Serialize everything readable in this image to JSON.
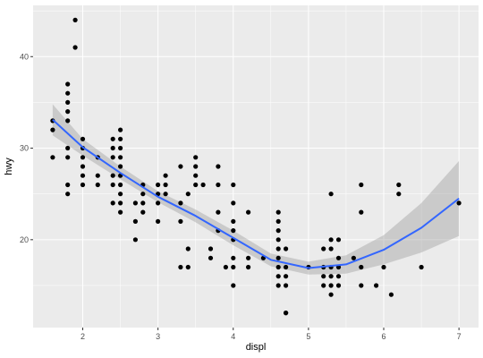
{
  "colors": {
    "panel_bg": "#ebebeb",
    "grid_major": "#ffffff",
    "point": "#000000",
    "smooth_line": "#3366ff",
    "ribbon": "#999999",
    "tick_text": "#4d4d4d"
  },
  "chart_data": {
    "type": "scatter",
    "title": "",
    "xlabel": "displ",
    "ylabel": "hwy",
    "xlim": [
      1.34,
      7.26
    ],
    "ylim": [
      10.4,
      45.6
    ],
    "grid": true,
    "x_ticks": [
      2,
      3,
      4,
      5,
      6,
      7
    ],
    "y_ticks": [
      20,
      30,
      40
    ],
    "series": [
      {
        "type": "points",
        "points": [
          [
            1.6,
            33
          ],
          [
            1.6,
            32
          ],
          [
            1.6,
            29
          ],
          [
            1.8,
            37
          ],
          [
            1.8,
            36
          ],
          [
            1.8,
            35
          ],
          [
            1.8,
            34
          ],
          [
            1.8,
            33
          ],
          [
            1.8,
            30
          ],
          [
            1.8,
            29
          ],
          [
            1.8,
            26
          ],
          [
            1.8,
            25
          ],
          [
            1.9,
            44
          ],
          [
            1.9,
            41
          ],
          [
            2.0,
            31
          ],
          [
            2.0,
            30
          ],
          [
            2.0,
            29
          ],
          [
            2.0,
            28
          ],
          [
            2.0,
            27
          ],
          [
            2.0,
            26
          ],
          [
            2.2,
            27
          ],
          [
            2.2,
            26
          ],
          [
            2.2,
            29
          ],
          [
            2.4,
            31
          ],
          [
            2.4,
            30
          ],
          [
            2.4,
            29
          ],
          [
            2.4,
            27
          ],
          [
            2.4,
            26
          ],
          [
            2.4,
            24
          ],
          [
            2.5,
            32
          ],
          [
            2.5,
            31
          ],
          [
            2.5,
            30
          ],
          [
            2.5,
            29
          ],
          [
            2.5,
            28
          ],
          [
            2.5,
            27
          ],
          [
            2.5,
            26
          ],
          [
            2.5,
            25
          ],
          [
            2.5,
            24
          ],
          [
            2.5,
            23
          ],
          [
            2.7,
            24
          ],
          [
            2.7,
            22
          ],
          [
            2.7,
            20
          ],
          [
            2.8,
            26
          ],
          [
            2.8,
            25
          ],
          [
            2.8,
            24
          ],
          [
            2.8,
            23
          ],
          [
            3.0,
            26
          ],
          [
            3.0,
            25
          ],
          [
            3.0,
            24
          ],
          [
            3.0,
            22
          ],
          [
            3.1,
            27
          ],
          [
            3.1,
            26
          ],
          [
            3.1,
            25
          ],
          [
            3.3,
            28
          ],
          [
            3.3,
            24
          ],
          [
            3.3,
            22
          ],
          [
            3.3,
            17
          ],
          [
            3.4,
            25
          ],
          [
            3.4,
            19
          ],
          [
            3.4,
            17
          ],
          [
            3.5,
            29
          ],
          [
            3.5,
            28
          ],
          [
            3.5,
            27
          ],
          [
            3.5,
            26
          ],
          [
            3.6,
            26
          ],
          [
            3.7,
            19
          ],
          [
            3.7,
            18
          ],
          [
            3.8,
            28
          ],
          [
            3.8,
            26
          ],
          [
            3.8,
            23
          ],
          [
            3.8,
            21
          ],
          [
            3.9,
            17
          ],
          [
            4.0,
            26
          ],
          [
            4.0,
            24
          ],
          [
            4.0,
            22
          ],
          [
            4.0,
            21
          ],
          [
            4.0,
            20
          ],
          [
            4.0,
            18
          ],
          [
            4.0,
            17
          ],
          [
            4.0,
            15
          ],
          [
            4.2,
            23
          ],
          [
            4.2,
            18
          ],
          [
            4.2,
            17
          ],
          [
            4.4,
            18
          ],
          [
            4.6,
            23
          ],
          [
            4.6,
            22
          ],
          [
            4.6,
            21
          ],
          [
            4.6,
            20
          ],
          [
            4.6,
            19
          ],
          [
            4.6,
            18
          ],
          [
            4.6,
            17
          ],
          [
            4.6,
            16
          ],
          [
            4.6,
            15
          ],
          [
            4.7,
            19
          ],
          [
            4.7,
            17
          ],
          [
            4.7,
            16
          ],
          [
            4.7,
            15
          ],
          [
            4.7,
            12
          ],
          [
            4.7,
            12
          ],
          [
            5.0,
            17
          ],
          [
            5.2,
            19
          ],
          [
            5.2,
            17
          ],
          [
            5.2,
            16
          ],
          [
            5.2,
            15
          ],
          [
            5.3,
            25
          ],
          [
            5.3,
            20
          ],
          [
            5.3,
            19
          ],
          [
            5.3,
            17
          ],
          [
            5.3,
            16
          ],
          [
            5.3,
            15
          ],
          [
            5.3,
            14
          ],
          [
            5.4,
            20
          ],
          [
            5.4,
            18
          ],
          [
            5.4,
            17
          ],
          [
            5.4,
            16
          ],
          [
            5.4,
            15
          ],
          [
            5.6,
            18
          ],
          [
            5.7,
            26
          ],
          [
            5.7,
            23
          ],
          [
            5.7,
            17
          ],
          [
            5.7,
            15
          ],
          [
            5.9,
            15
          ],
          [
            6.0,
            17
          ],
          [
            6.1,
            14
          ],
          [
            6.2,
            26
          ],
          [
            6.2,
            25
          ],
          [
            6.5,
            17
          ],
          [
            7.0,
            24
          ]
        ]
      },
      {
        "type": "smooth",
        "name": "",
        "fit": [
          [
            1.6,
            33.1
          ],
          [
            2.0,
            30.1
          ],
          [
            2.5,
            27.3
          ],
          [
            3.0,
            24.7
          ],
          [
            3.5,
            22.6
          ],
          [
            4.0,
            20.2
          ],
          [
            4.5,
            17.8
          ],
          [
            5.0,
            16.9
          ],
          [
            5.5,
            17.3
          ],
          [
            6.0,
            18.9
          ],
          [
            6.5,
            21.3
          ],
          [
            7.0,
            24.5
          ]
        ],
        "upper": [
          [
            1.6,
            34.8
          ],
          [
            2.0,
            31.0
          ],
          [
            2.5,
            28.0
          ],
          [
            3.0,
            25.3
          ],
          [
            3.5,
            23.3
          ],
          [
            4.0,
            21.0
          ],
          [
            4.5,
            18.5
          ],
          [
            5.0,
            17.6
          ],
          [
            5.5,
            18.3
          ],
          [
            6.0,
            20.5
          ],
          [
            6.5,
            24.0
          ],
          [
            7.0,
            28.6
          ]
        ],
        "lower": [
          [
            1.6,
            31.4
          ],
          [
            2.0,
            29.2
          ],
          [
            2.5,
            26.6
          ],
          [
            3.0,
            24.1
          ],
          [
            3.5,
            21.9
          ],
          [
            4.0,
            19.4
          ],
          [
            4.5,
            17.1
          ],
          [
            5.0,
            16.2
          ],
          [
            5.5,
            16.3
          ],
          [
            6.0,
            17.3
          ],
          [
            6.5,
            18.6
          ],
          [
            7.0,
            20.4
          ]
        ]
      }
    ]
  }
}
